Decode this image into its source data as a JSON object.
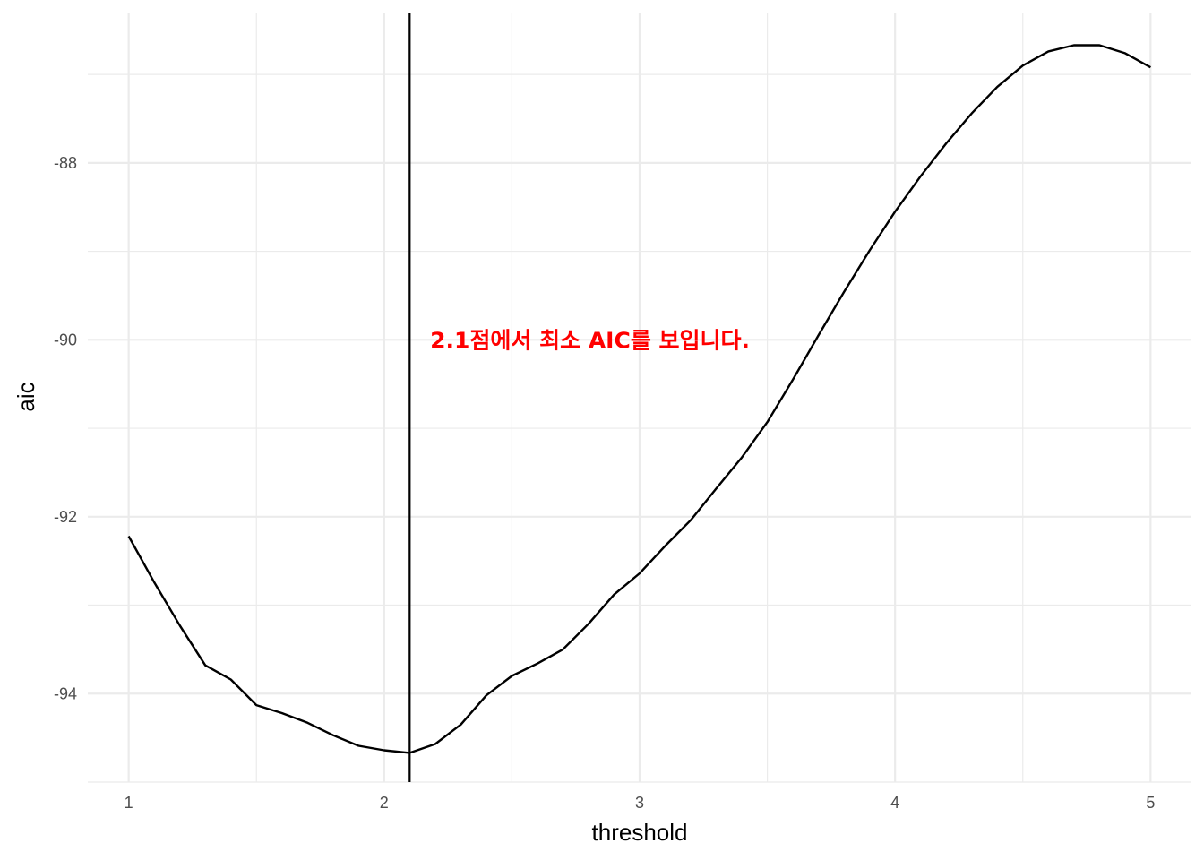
{
  "chart_data": {
    "type": "line",
    "xlabel": "threshold",
    "ylabel": "aic",
    "xlim": [
      0.84,
      5.16
    ],
    "ylim": [
      -95.0,
      -86.3
    ],
    "x_ticks": [
      1,
      2,
      3,
      4,
      5
    ],
    "x_tick_labels": [
      "1",
      "2",
      "3",
      "4",
      "5"
    ],
    "y_ticks": [
      -94,
      -92,
      -90,
      -88
    ],
    "y_tick_labels": [
      "-94",
      "-92",
      "-90",
      "-88"
    ],
    "grid": true,
    "series": [
      {
        "color": "#000000",
        "x": [
          1.0,
          1.1,
          1.2,
          1.3,
          1.4,
          1.5,
          1.6,
          1.7,
          1.8,
          1.9,
          2.0,
          2.1,
          2.2,
          2.3,
          2.4,
          2.5,
          2.6,
          2.7,
          2.8,
          2.9,
          3.0,
          3.1,
          3.2,
          3.3,
          3.4,
          3.5,
          3.6,
          3.7,
          3.8,
          3.9,
          4.0,
          4.1,
          4.2,
          4.3,
          4.4,
          4.5,
          4.6,
          4.7,
          4.8,
          4.9,
          5.0
        ],
        "y": [
          -92.22,
          -92.74,
          -93.23,
          -93.68,
          -93.84,
          -94.13,
          -94.22,
          -94.33,
          -94.47,
          -94.59,
          -94.64,
          -94.67,
          -94.57,
          -94.35,
          -94.02,
          -93.8,
          -93.66,
          -93.5,
          -93.21,
          -92.88,
          -92.64,
          -92.33,
          -92.04,
          -91.68,
          -91.33,
          -90.93,
          -90.45,
          -89.95,
          -89.46,
          -88.99,
          -88.55,
          -88.15,
          -87.78,
          -87.44,
          -87.14,
          -86.9,
          -86.74,
          -86.67,
          -86.67,
          -86.76,
          -86.92
        ]
      }
    ],
    "vline": {
      "x": 2.1,
      "color": "#000000"
    },
    "annotations": [
      {
        "text": "2.1점에서 최소 AIC를 보입니다.",
        "x": 2.18,
        "y": -90.0,
        "color": "#ff0000"
      }
    ]
  }
}
